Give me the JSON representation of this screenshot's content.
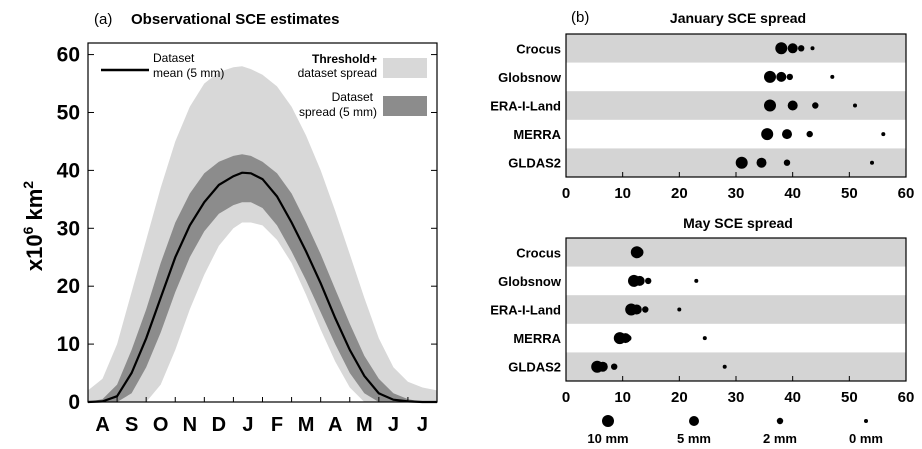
{
  "panel_a": {
    "label": "(a)",
    "title": "Observational SCE estimates",
    "ylabel_main": "x10",
    "ylabel_exp1": "6",
    "ylabel_unit": " km",
    "ylabel_exp2": "2",
    "legend": {
      "mean_line1": "Dataset",
      "mean_line2": "mean (5 mm)",
      "threshold_line1": "Threshold+",
      "threshold_line2": "dataset spread",
      "spread_line1": "Dataset",
      "spread_line2": "spread (5 mm)"
    }
  },
  "panel_b": {
    "label": "(b)",
    "legend": [
      {
        "label": "10 mm",
        "radius": 6
      },
      {
        "label": "5 mm",
        "radius": 5
      },
      {
        "label": "2 mm",
        "radius": 3.2
      },
      {
        "label": "0 mm",
        "radius": 2
      }
    ]
  },
  "colors": {
    "outer_band": "#d8d8d8",
    "inner_band": "#8c8c8c",
    "mean_line": "#000000",
    "row_shade": "#d4d4d4"
  },
  "chart_data": [
    {
      "type": "area",
      "title": "Observational SCE estimates",
      "ylabel": "x10^6 km^2",
      "ylim": [
        0,
        62
      ],
      "yticks": [
        0,
        10,
        20,
        30,
        40,
        50,
        60
      ],
      "xlim": [
        0,
        12
      ],
      "x_categories": [
        "A",
        "S",
        "O",
        "N",
        "D",
        "J",
        "F",
        "M",
        "A",
        "M",
        "J",
        "J"
      ],
      "series": [
        {
          "name": "Dataset mean (5 mm)",
          "x": [
            0,
            0.5,
            1,
            1.5,
            2,
            2.5,
            3,
            3.5,
            4,
            4.5,
            5,
            5.3,
            5.6,
            6,
            6.5,
            7,
            7.5,
            8,
            8.5,
            9,
            9.5,
            10,
            10.5,
            11,
            11.5,
            12
          ],
          "values": [
            0,
            0.1,
            1,
            5,
            11,
            18,
            25,
            30.5,
            34.5,
            37.5,
            39,
            39.6,
            39.5,
            38.5,
            35.5,
            31,
            26,
            20.5,
            14.5,
            9,
            4.5,
            1.5,
            0.4,
            0.1,
            0,
            0
          ]
        },
        {
          "name": "Dataset spread (5 mm)",
          "x": [
            0,
            0.5,
            1,
            1.5,
            2,
            2.5,
            3,
            3.5,
            4,
            4.5,
            5,
            5.3,
            5.6,
            6,
            6.5,
            7,
            7.5,
            8,
            8.5,
            9,
            9.5,
            10,
            10.5,
            11,
            11.5,
            12
          ],
          "lower": [
            0,
            0,
            0,
            1.5,
            6,
            12,
            19,
            25,
            29.5,
            32.5,
            34,
            34.5,
            34.5,
            33.5,
            30.5,
            26,
            21,
            15.5,
            10,
            5,
            1.5,
            0,
            0,
            0,
            0,
            0
          ],
          "upper": [
            0,
            0.5,
            3,
            9,
            16,
            24,
            31,
            36,
            39.5,
            41.5,
            42.5,
            42.8,
            42.5,
            41.5,
            39.5,
            36,
            31,
            25.5,
            19.5,
            13.5,
            8,
            4,
            1.5,
            0.5,
            0,
            0
          ]
        },
        {
          "name": "Threshold+ dataset spread",
          "x": [
            0,
            0.5,
            1,
            1.5,
            2,
            2.5,
            3,
            3.5,
            4,
            4.5,
            5,
            5.3,
            5.6,
            6,
            6.5,
            7,
            7.5,
            8,
            8.5,
            9,
            9.5,
            10,
            10.5,
            11,
            11.5,
            12
          ],
          "lower": [
            0,
            0,
            0,
            0,
            0,
            3,
            9,
            16,
            22,
            27,
            30,
            31,
            31,
            30.5,
            28,
            24,
            18.5,
            12.5,
            7,
            2.5,
            0,
            0,
            0,
            0,
            0,
            0
          ],
          "upper": [
            2,
            4,
            10,
            19,
            28,
            37,
            45,
            51,
            55,
            57,
            57.8,
            58,
            57.5,
            56.5,
            54.5,
            51,
            46,
            40,
            33,
            25.5,
            18,
            11,
            6,
            3.5,
            2.5,
            2
          ]
        }
      ]
    },
    {
      "type": "scatter",
      "title": "January SCE spread",
      "xlim": [
        0,
        60
      ],
      "xticks": [
        0,
        10,
        20,
        30,
        40,
        50,
        60
      ],
      "categories": [
        "Crocus",
        "Globsnow",
        "ERA-I-Land",
        "MERRA",
        "GLDAS2"
      ],
      "thresholds": [
        "10 mm",
        "5 mm",
        "2 mm",
        "0 mm"
      ],
      "values": [
        [
          38,
          40,
          41.5,
          43.5
        ],
        [
          36,
          38,
          39.5,
          47
        ],
        [
          36,
          40,
          44,
          51
        ],
        [
          35.5,
          39,
          43,
          56
        ],
        [
          31,
          34.5,
          39,
          54
        ]
      ]
    },
    {
      "type": "scatter",
      "title": "May SCE spread",
      "xlim": [
        0,
        60
      ],
      "xticks": [
        0,
        10,
        20,
        30,
        40,
        50,
        60
      ],
      "categories": [
        "Crocus",
        "Globsnow",
        "ERA-I-Land",
        "MERRA",
        "GLDAS2"
      ],
      "thresholds": [
        "10 mm",
        "5 mm",
        "2 mm",
        "0 mm"
      ],
      "values": [
        [
          12.5,
          12.8,
          13,
          13.2
        ],
        [
          12,
          13,
          14.5,
          23
        ],
        [
          11.5,
          12.5,
          14,
          20
        ],
        [
          9.5,
          10.5,
          11,
          24.5
        ],
        [
          5.5,
          6.5,
          8.5,
          28
        ]
      ]
    }
  ]
}
